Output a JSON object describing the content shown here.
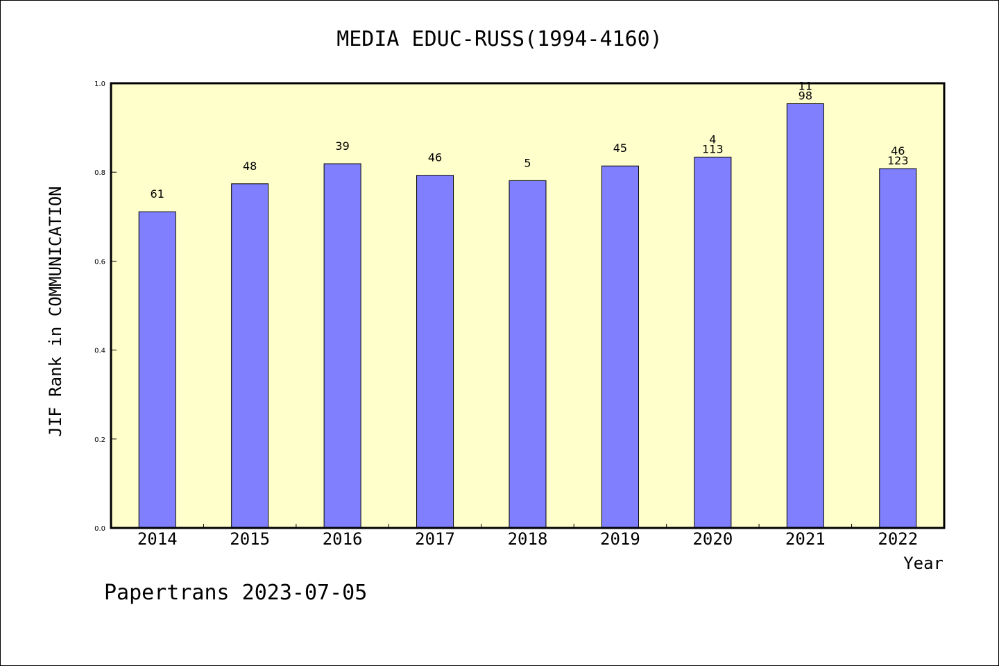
{
  "chart_data": {
    "type": "bar",
    "title": "MEDIA EDUC-RUSS(1994-4160)",
    "xlabel": "Year",
    "ylabel": "JIF Rank in COMMUNICATION",
    "ylim": [
      0,
      1.0
    ],
    "yticks": [
      "0.0",
      "0.2",
      "0.4",
      "0.6",
      "0.8",
      "1.0"
    ],
    "categories": [
      "2014",
      "2015",
      "2016",
      "2017",
      "2018",
      "2019",
      "2020",
      "2021",
      "2022"
    ],
    "values": [
      0.711,
      0.774,
      0.819,
      0.793,
      0.781,
      0.814,
      0.834,
      0.954,
      0.808
    ],
    "bar_labels": [
      [
        "61"
      ],
      [
        "48"
      ],
      [
        "39"
      ],
      [
        "46"
      ],
      [
        "5"
      ],
      [
        "45"
      ],
      [
        "4",
        "113"
      ],
      [
        "11",
        "98"
      ],
      [
        "46",
        "123"
      ]
    ],
    "colors": {
      "plot_background": "#ffffcc",
      "bar_fill": "#8080ff",
      "bar_stroke": "#000000"
    },
    "grid": false,
    "legend": "none"
  },
  "footer": {
    "text": "Papertrans 2023-07-05"
  }
}
